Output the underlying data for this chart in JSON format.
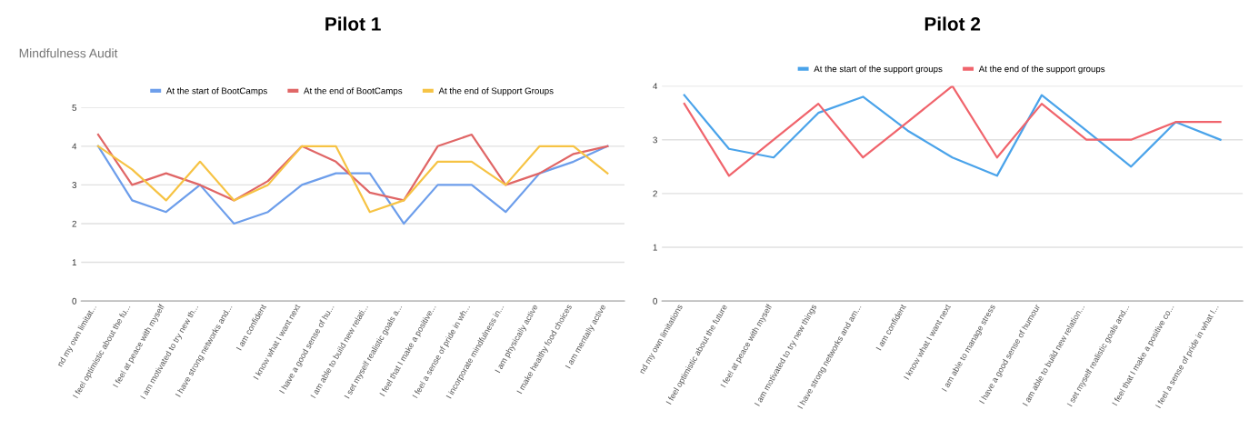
{
  "chart_data": [
    {
      "type": "line",
      "title": "Pilot 1",
      "subtitle": "Mindfulness Audit",
      "categories": [
        "nd my own limitat...",
        "I feel optimistic about the fu...",
        "I feel at peace with myself",
        "I am motivated to try new th...",
        "I have strong networks and...",
        "I am confident",
        "I know what I want next",
        "I have a good sense of hu...",
        "I am able to build new relati...",
        "I set myself realistic goals a...",
        "I feel that I make a positive...",
        "I feel a sense of pride in wh...",
        "I incorporate mindfulness in...",
        "I am physically active",
        "I make healthy food choices",
        "I am mentally active"
      ],
      "series": [
        {
          "name": "At the start of BootCamps",
          "color": "#6d9eeb",
          "values": [
            4,
            2.6,
            2.3,
            3,
            2,
            2.3,
            3,
            3.3,
            3.3,
            2,
            3,
            3,
            2.3,
            3.3,
            3.6,
            4
          ]
        },
        {
          "name": "At the end of BootCamps",
          "color": "#e06666",
          "values": [
            4.3,
            3,
            3.3,
            3,
            2.6,
            3.1,
            4,
            3.6,
            2.8,
            2.6,
            4,
            4.3,
            3,
            3.3,
            3.8,
            4
          ]
        },
        {
          "name": "At the end of Support Groups",
          "color": "#f6c344",
          "values": [
            4,
            3.4,
            2.6,
            3.6,
            2.6,
            3,
            4,
            4,
            2.3,
            2.6,
            3.6,
            3.6,
            3,
            4,
            4,
            3.3
          ]
        }
      ],
      "ylim": [
        0,
        5
      ],
      "yticks": [
        0,
        1,
        2,
        3,
        4,
        5
      ],
      "grid": "y",
      "legend": "top",
      "marker": "none",
      "line_style": "solid"
    },
    {
      "type": "line",
      "title": "Pilot 2",
      "categories": [
        "nd my own limitations",
        "I feel optimistic about the future",
        "I feel at peace with myself",
        "I am motivated to try new things",
        "I have strong networks and am...",
        "I am confident",
        "I know what I want next",
        "I am able to manage stress",
        "I have a good sense of humour",
        "I am able to build new relation...",
        "I set myself realistic goals and...",
        "I feel that I make a positive co...",
        "I feel a sense of pride in what I..."
      ],
      "series": [
        {
          "name": "At the start of the support groups",
          "color": "#4aa3ea",
          "values": [
            3.83,
            2.83,
            2.67,
            3.5,
            3.8,
            3.17,
            2.67,
            2.33,
            3.83,
            3.17,
            2.5,
            3.33,
            3.0
          ]
        },
        {
          "name": "At the end of the support groups",
          "color": "#f0646c",
          "values": [
            3.67,
            2.33,
            3.0,
            3.67,
            2.67,
            3.33,
            4.0,
            2.67,
            3.67,
            3.0,
            3.0,
            3.33,
            3.33
          ]
        }
      ],
      "ylim": [
        0,
        4
      ],
      "yticks": [
        0,
        1,
        2,
        3,
        4
      ],
      "grid": "y",
      "legend": "top",
      "marker": "none",
      "line_style": "solid"
    }
  ]
}
